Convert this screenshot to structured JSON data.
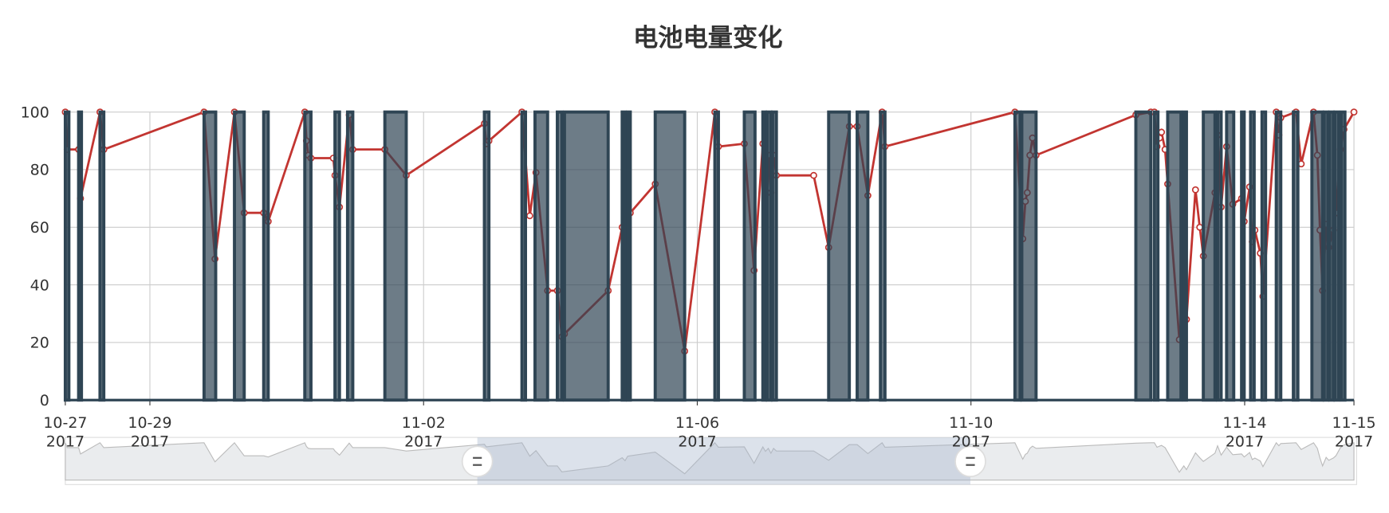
{
  "chart_data": {
    "type": "line",
    "title": "电池电量变化",
    "xlim": [
      "2017-10-27 18:20",
      "2017-11-15 14:20"
    ],
    "xticks": [
      {
        "value": "2017-10-27 18:20",
        "label": "10-27\n2017"
      },
      {
        "value": "2017-10-29 00:00",
        "label": "10-29\n2017"
      },
      {
        "value": "2017-11-02 00:00",
        "label": "11-02\n2017"
      },
      {
        "value": "2017-11-06 00:00",
        "label": "11-06\n2017"
      },
      {
        "value": "2017-11-10 00:00",
        "label": "11-10\n2017"
      },
      {
        "value": "2017-11-14 00:00",
        "label": "11-14\n2017"
      },
      {
        "value": "2017-11-15 14:20",
        "label": "11-15\n2017"
      }
    ],
    "ylim": [
      0,
      100
    ],
    "yticks": [
      0,
      20,
      40,
      60,
      80,
      100
    ],
    "grid": true,
    "series": [
      {
        "type": "line",
        "color": "#c23531",
        "x": [
          "2017-10-27 18:20",
          "2017-10-27 19:00",
          "2017-10-27 23:00",
          "2017-10-27 23:40",
          "2017-10-28 06:30",
          "2017-10-28 07:50",
          "2017-10-29 19:00",
          "2017-10-29 22:50",
          "2017-10-30 05:40",
          "2017-10-30 09:05",
          "2017-10-30 15:55",
          "2017-10-30 17:30",
          "2017-10-31 06:20",
          "2017-10-31 06:55",
          "2017-10-31 07:35",
          "2017-10-31 08:30",
          "2017-10-31 16:20",
          "2017-10-31 16:55",
          "2017-10-31 18:30",
          "2017-10-31 21:55",
          "2017-10-31 23:10",
          "2017-11-01 10:25",
          "2017-11-01 17:55",
          "2017-11-02 21:20",
          "2017-11-02 22:00",
          "2017-11-02 22:55",
          "2017-11-03 10:30",
          "2017-11-03 13:15",
          "2017-11-03 15:25",
          "2017-11-03 19:30",
          "2017-11-03 22:55",
          "2017-11-04 00:30",
          "2017-11-04 01:25",
          "2017-11-04 16:45",
          "2017-11-04 21:40",
          "2017-11-04 22:40",
          "2017-11-04 23:35",
          "2017-11-05 00:30",
          "2017-11-05 09:15",
          "2017-11-05 19:35",
          "2017-11-06 06:10",
          "2017-11-06 07:25",
          "2017-11-06 16:30",
          "2017-11-06 19:55",
          "2017-11-06 23:00",
          "2017-11-06 23:55",
          "2017-11-07 00:55",
          "2017-11-07 01:50",
          "2017-11-07 02:45",
          "2017-11-07 03:45",
          "2017-11-07 16:50",
          "2017-11-07 22:05",
          "2017-11-08 05:20",
          "2017-11-08 08:05",
          "2017-11-08 11:50",
          "2017-11-08 16:50",
          "2017-11-08 17:50",
          "2017-11-10 15:25",
          "2017-11-10 18:10",
          "2017-11-10 19:05",
          "2017-11-10 19:45",
          "2017-11-10 20:40",
          "2017-11-10 21:35",
          "2017-11-10 22:50",
          "2017-11-12 09:50",
          "2017-11-12 15:05",
          "2017-11-12 16:20",
          "2017-11-12 17:15",
          "2017-11-12 18:10",
          "2017-11-12 18:50",
          "2017-11-12 20:05",
          "2017-11-12 21:00",
          "2017-11-13 01:05",
          "2017-11-13 02:40",
          "2017-11-13 03:35",
          "2017-11-13 06:45",
          "2017-11-13 08:15",
          "2017-11-13 09:30",
          "2017-11-13 13:35",
          "2017-11-13 14:30",
          "2017-11-13 15:45",
          "2017-11-13 17:40",
          "2017-11-13 19:50",
          "2017-11-13 22:55",
          "2017-11-13 23:50",
          "2017-11-14 01:45",
          "2017-11-14 02:40",
          "2017-11-14 03:35",
          "2017-11-14 05:30",
          "2017-11-14 06:25",
          "2017-11-14 11:05",
          "2017-11-14 12:00",
          "2017-11-14 12:40",
          "2017-11-14 18:00",
          "2017-11-14 19:50",
          "2017-11-15 00:10",
          "2017-11-15 01:30",
          "2017-11-15 02:25",
          "2017-11-15 03:20",
          "2017-11-15 04:35",
          "2017-11-15 05:30",
          "2017-11-15 07:05",
          "2017-11-15 08:00",
          "2017-11-15 09:35",
          "2017-11-15 10:50",
          "2017-11-15 14:20"
        ],
        "values": [
          100,
          87,
          87,
          70,
          100,
          87,
          100,
          49,
          100,
          65,
          65,
          62,
          100,
          90,
          85,
          84,
          84,
          78,
          67,
          99,
          87,
          87,
          78,
          96,
          89,
          90,
          100,
          64,
          79,
          38,
          38,
          22,
          23,
          38,
          60,
          52,
          64,
          65,
          75,
          17,
          100,
          88,
          89,
          45,
          89,
          77,
          85,
          72,
          85,
          78,
          78,
          53,
          95,
          95,
          71,
          100,
          88,
          100,
          56,
          69,
          72,
          85,
          91,
          85,
          99,
          100,
          100,
          88,
          91,
          93,
          87,
          75,
          21,
          38,
          28,
          73,
          60,
          50,
          72,
          92,
          67,
          88,
          68,
          70,
          62,
          74,
          55,
          59,
          51,
          36,
          100,
          92,
          98,
          100,
          82,
          100,
          85,
          59,
          38,
          61,
          53,
          59,
          65,
          87,
          94,
          100
        ]
      },
      {
        "type": "step",
        "color": "#2f4554",
        "x": [
          "2017-10-27 18:20",
          "2017-10-27 19:35",
          "2017-10-27 23:00",
          "2017-10-28 00:00",
          "2017-10-28 06:30",
          "2017-10-28 07:50",
          "2017-10-29 19:00",
          "2017-10-29 23:05",
          "2017-10-30 05:40",
          "2017-10-30 09:05",
          "2017-10-30 15:55",
          "2017-10-30 17:30",
          "2017-10-31 06:20",
          "2017-10-31 08:30",
          "2017-10-31 16:55",
          "2017-10-31 18:30",
          "2017-10-31 21:20",
          "2017-10-31 23:10",
          "2017-11-01 10:25",
          "2017-11-01 17:55",
          "2017-11-02 21:20",
          "2017-11-02 22:55",
          "2017-11-03 10:30",
          "2017-11-03 11:45",
          "2017-11-03 15:05",
          "2017-11-03 19:30",
          "2017-11-03 22:55",
          "2017-11-04 00:30",
          "2017-11-04 01:25",
          "2017-11-04 16:45",
          "2017-11-04 21:40",
          "2017-11-04 22:40",
          "2017-11-04 23:35",
          "2017-11-05 00:30",
          "2017-11-05 09:15",
          "2017-11-05 19:35",
          "2017-11-06 06:10",
          "2017-11-06 07:25",
          "2017-11-06 16:30",
          "2017-11-06 20:15",
          "2017-11-06 23:00",
          "2017-11-06 23:55",
          "2017-11-07 00:35",
          "2017-11-07 01:50",
          "2017-11-07 02:25",
          "2017-11-07 03:45",
          "2017-11-07 22:05",
          "2017-11-08 05:20",
          "2017-11-08 08:05",
          "2017-11-08 11:50",
          "2017-11-08 16:15",
          "2017-11-08 17:50",
          "2017-11-10 15:25",
          "2017-11-10 17:15",
          "2017-11-10 17:50",
          "2017-11-10 22:50",
          "2017-11-12 09:50",
          "2017-11-12 15:05",
          "2017-11-12 16:20",
          "2017-11-12 17:35",
          "2017-11-12 21:00",
          "2017-11-13 01:40",
          "2017-11-13 02:40",
          "2017-11-13 03:35",
          "2017-11-13 09:30",
          "2017-11-13 13:35",
          "2017-11-13 14:30",
          "2017-11-13 15:45",
          "2017-11-13 17:40",
          "2017-11-13 20:10",
          "2017-11-13 22:55",
          "2017-11-13 23:50",
          "2017-11-14 02:05",
          "2017-11-14 03:20",
          "2017-11-14 06:05",
          "2017-11-14 07:20",
          "2017-11-14 11:05",
          "2017-11-14 12:40",
          "2017-11-14 17:05",
          "2017-11-14 18:40",
          "2017-11-14 23:35",
          "2017-11-15 03:20",
          "2017-11-15 03:55",
          "2017-11-15 05:10",
          "2017-11-15 05:50",
          "2017-11-15 07:05",
          "2017-11-15 07:40",
          "2017-11-15 08:55",
          "2017-11-15 09:55",
          "2017-11-15 11:10"
        ],
        "values": [
          100,
          0,
          100,
          0,
          100,
          0,
          100,
          0,
          100,
          0,
          100,
          0,
          100,
          0,
          100,
          0,
          100,
          0,
          100,
          0,
          100,
          0,
          100,
          0,
          100,
          0,
          100,
          0,
          100,
          0,
          100,
          0,
          100,
          0,
          100,
          0,
          100,
          0,
          100,
          0,
          100,
          0,
          100,
          0,
          100,
          0,
          100,
          0,
          100,
          0,
          100,
          0,
          100,
          0,
          100,
          0,
          100,
          0,
          100,
          0,
          100,
          0,
          100,
          0,
          100,
          0,
          100,
          0,
          100,
          0,
          100,
          0,
          100,
          0,
          100,
          0,
          100,
          0,
          100,
          0,
          100,
          0,
          100,
          0,
          100,
          0,
          100,
          0,
          100,
          0
        ]
      }
    ]
  }
}
